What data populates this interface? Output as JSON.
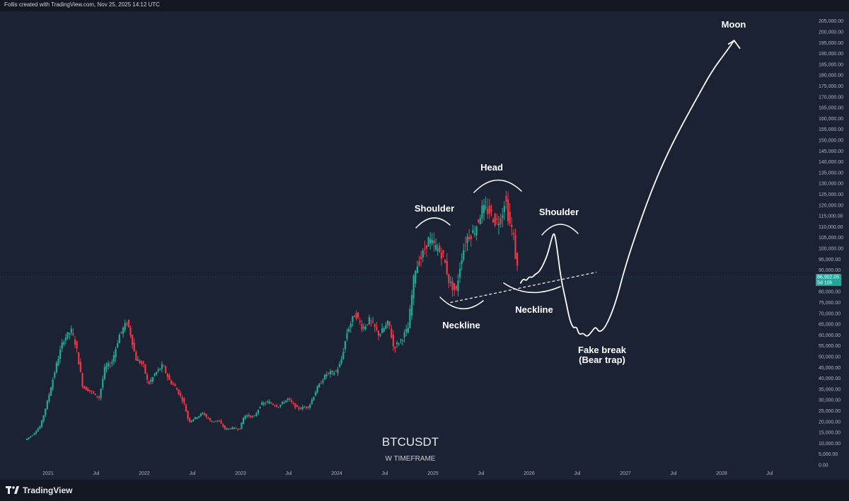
{
  "header": {
    "text": "Follis created with TradingView.com, Nov 25, 2025 14:12 UTC"
  },
  "footer": {
    "logo_text": "TradingView"
  },
  "colors": {
    "background": "#1b2234",
    "up": "#22ab94",
    "down": "#f23645",
    "price_tag": "#26a69a",
    "annotation": "#ffffff"
  },
  "chart_data": {
    "type": "candlestick",
    "symbol": "BTCUSDT",
    "subtitle": "W TIMEFRAME",
    "y_axis": {
      "min": 0,
      "max": 205000,
      "step": 5000,
      "labels": [
        "205,000.00",
        "200,000.00",
        "195,000.00",
        "190,000.00",
        "185,000.00",
        "180,000.00",
        "175,000.00",
        "170,000.00",
        "165,000.00",
        "160,000.00",
        "155,000.00",
        "150,000.00",
        "145,000.00",
        "140,000.00",
        "135,000.00",
        "130,000.00",
        "125,000.00",
        "120,000.00",
        "115,000.00",
        "110,000.00",
        "105,000.00",
        "100,000.00",
        "95,000.00",
        "90,000.00",
        "85,000.00",
        "80,000.00",
        "75,000.00",
        "70,000.00",
        "65,000.00",
        "60,000.00",
        "55,000.00",
        "50,000.00",
        "45,000.00",
        "40,000.00",
        "35,000.00",
        "30,000.00",
        "25,000.00",
        "20,000.00",
        "15,000.00",
        "10,000.00",
        "5,000.00",
        "0.00"
      ]
    },
    "x_axis": {
      "ticks": [
        {
          "label": "2021",
          "date": 2021.0
        },
        {
          "label": "Jul",
          "date": 2021.5
        },
        {
          "label": "2022",
          "date": 2022.0
        },
        {
          "label": "Jul",
          "date": 2022.5
        },
        {
          "label": "2023",
          "date": 2023.0
        },
        {
          "label": "Jul",
          "date": 2023.5
        },
        {
          "label": "2024",
          "date": 2024.0
        },
        {
          "label": "Jul",
          "date": 2024.5
        },
        {
          "label": "2025",
          "date": 2025.0
        },
        {
          "label": "Jul",
          "date": 2025.5
        },
        {
          "label": "2026",
          "date": 2026.0
        },
        {
          "label": "Jul",
          "date": 2026.5
        },
        {
          "label": "2027",
          "date": 2027.0
        },
        {
          "label": "Jul",
          "date": 2027.5
        },
        {
          "label": "2028",
          "date": 2028.0
        },
        {
          "label": "Jul",
          "date": 2028.5
        }
      ]
    },
    "price_tag": {
      "price": 86902.05,
      "label": "86,902.05",
      "countdown": "5d 10h"
    },
    "price_path": [
      [
        2020.77,
        11500
      ],
      [
        2020.85,
        14000
      ],
      [
        2020.93,
        18000
      ],
      [
        2021.0,
        29000
      ],
      [
        2021.05,
        38000
      ],
      [
        2021.1,
        47000
      ],
      [
        2021.17,
        58000
      ],
      [
        2021.25,
        62000
      ],
      [
        2021.3,
        55000
      ],
      [
        2021.37,
        36000
      ],
      [
        2021.45,
        34000
      ],
      [
        2021.54,
        31000
      ],
      [
        2021.6,
        45000
      ],
      [
        2021.67,
        47000
      ],
      [
        2021.75,
        60000
      ],
      [
        2021.83,
        66000
      ],
      [
        2021.87,
        60000
      ],
      [
        2021.92,
        49000
      ],
      [
        2022.0,
        46000
      ],
      [
        2022.05,
        37000
      ],
      [
        2022.12,
        42000
      ],
      [
        2022.2,
        46000
      ],
      [
        2022.27,
        39000
      ],
      [
        2022.33,
        36000
      ],
      [
        2022.42,
        29000
      ],
      [
        2022.47,
        20000
      ],
      [
        2022.55,
        22000
      ],
      [
        2022.62,
        24000
      ],
      [
        2022.7,
        20000
      ],
      [
        2022.78,
        20500
      ],
      [
        2022.85,
        16500
      ],
      [
        2022.92,
        17000
      ],
      [
        2023.0,
        16600
      ],
      [
        2023.05,
        23000
      ],
      [
        2023.15,
        22000
      ],
      [
        2023.22,
        28000
      ],
      [
        2023.3,
        29000
      ],
      [
        2023.4,
        27000
      ],
      [
        2023.5,
        30500
      ],
      [
        2023.6,
        26000
      ],
      [
        2023.72,
        27000
      ],
      [
        2023.8,
        35000
      ],
      [
        2023.9,
        42000
      ],
      [
        2024.0,
        43000
      ],
      [
        2024.05,
        47000
      ],
      [
        2024.12,
        62000
      ],
      [
        2024.2,
        70000
      ],
      [
        2024.28,
        63000
      ],
      [
        2024.35,
        67000
      ],
      [
        2024.45,
        60000
      ],
      [
        2024.55,
        66000
      ],
      [
        2024.6,
        54000
      ],
      [
        2024.68,
        58000
      ],
      [
        2024.75,
        63000
      ],
      [
        2024.82,
        90000
      ],
      [
        2024.9,
        97000
      ],
      [
        2024.96,
        104000
      ],
      [
        2025.05,
        100000
      ],
      [
        2025.12,
        96000
      ],
      [
        2025.18,
        84000
      ],
      [
        2025.25,
        80000
      ],
      [
        2025.3,
        95000
      ],
      [
        2025.36,
        105000
      ],
      [
        2025.44,
        108000
      ],
      [
        2025.52,
        118000
      ],
      [
        2025.6,
        117000
      ],
      [
        2025.66,
        112000
      ],
      [
        2025.72,
        114000
      ],
      [
        2025.76,
        124000
      ],
      [
        2025.8,
        112000
      ],
      [
        2025.84,
        108000
      ],
      [
        2025.87,
        95000
      ],
      [
        2025.9,
        87000
      ]
    ]
  },
  "annotations": {
    "left_shoulder": "Shoulder",
    "head": "Head",
    "right_shoulder": "Shoulder",
    "neckline_left": "Neckline",
    "neckline_right": "Neckline",
    "fake_break_1": "Fake break",
    "fake_break_2": "(Bear trap)",
    "moon": "Moon"
  },
  "projection_path": [
    [
      2025.91,
      84000
    ],
    [
      2025.94,
      86000
    ],
    [
      2025.97,
      85000
    ],
    [
      2026.0,
      87000
    ],
    [
      2026.03,
      86500
    ],
    [
      2026.06,
      88000
    ],
    [
      2026.1,
      89000
    ],
    [
      2026.14,
      92000
    ],
    [
      2026.19,
      97000
    ],
    [
      2026.23,
      104000
    ],
    [
      2026.26,
      108000
    ],
    [
      2026.29,
      100000
    ],
    [
      2026.33,
      86000
    ],
    [
      2026.38,
      76000
    ],
    [
      2026.42,
      67000
    ],
    [
      2026.46,
      63000
    ],
    [
      2026.49,
      64000
    ],
    [
      2026.52,
      60000
    ],
    [
      2026.56,
      61000
    ],
    [
      2026.6,
      59000
    ],
    [
      2026.65,
      61500
    ],
    [
      2026.69,
      64000
    ],
    [
      2026.73,
      61000
    ],
    [
      2026.8,
      64000
    ],
    [
      2026.9,
      75000
    ],
    [
      2027.0,
      92000
    ],
    [
      2027.15,
      112000
    ],
    [
      2027.3,
      130000
    ],
    [
      2027.45,
      145000
    ],
    [
      2027.6,
      158000
    ],
    [
      2027.75,
      170000
    ],
    [
      2027.9,
      182000
    ],
    [
      2028.05,
      191000
    ],
    [
      2028.13,
      196000
    ]
  ],
  "neckline": [
    [
      2025.18,
      75000
    ],
    [
      2026.7,
      89000
    ]
  ]
}
